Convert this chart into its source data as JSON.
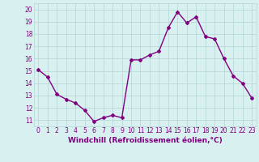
{
  "x": [
    0,
    1,
    2,
    3,
    4,
    5,
    6,
    7,
    8,
    9,
    10,
    11,
    12,
    13,
    14,
    15,
    16,
    17,
    18,
    19,
    20,
    21,
    22,
    23
  ],
  "y": [
    15.1,
    14.5,
    13.1,
    12.7,
    12.4,
    11.8,
    10.9,
    11.2,
    11.4,
    11.2,
    15.9,
    15.9,
    16.3,
    16.6,
    18.5,
    19.8,
    18.9,
    19.4,
    17.8,
    17.6,
    16.0,
    14.6,
    14.0,
    12.8
  ],
  "line_color": "#800080",
  "marker": "D",
  "marker_size": 2,
  "linewidth": 1.0,
  "bg_color": "#d8f0f0",
  "grid_color": "#b8dada",
  "xlabel": "Windchill (Refroidissement éolien,°C)",
  "ylabel_ticks": [
    11,
    12,
    13,
    14,
    15,
    16,
    17,
    18,
    19,
    20
  ],
  "xlim": [
    -0.5,
    23.5
  ],
  "ylim": [
    10.5,
    20.5
  ],
  "xticks": [
    0,
    1,
    2,
    3,
    4,
    5,
    6,
    7,
    8,
    9,
    10,
    11,
    12,
    13,
    14,
    15,
    16,
    17,
    18,
    19,
    20,
    21,
    22,
    23
  ],
  "tick_color": "#800080",
  "label_color": "#800080",
  "label_fontsize": 6.5,
  "tick_fontsize": 5.5
}
